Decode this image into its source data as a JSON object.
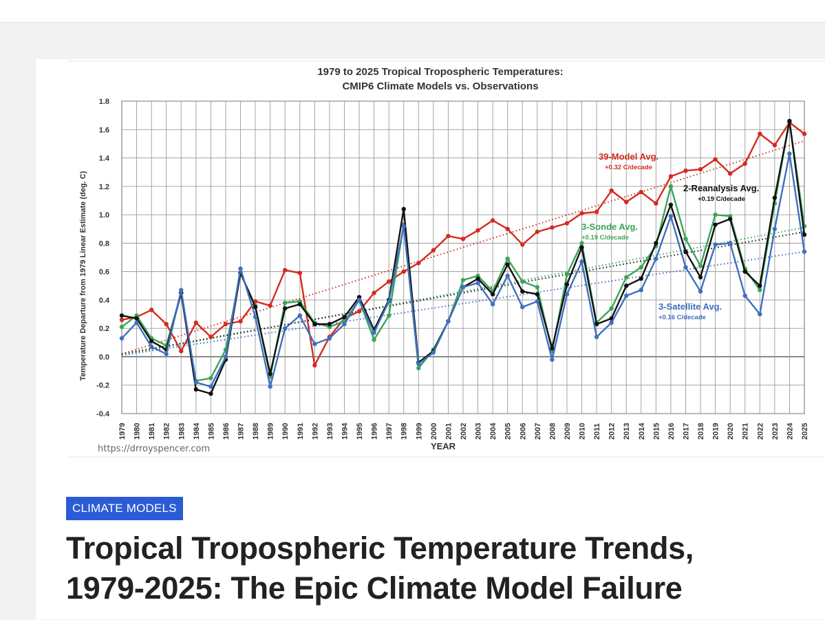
{
  "chart_data": {
    "type": "line",
    "title": [
      "1979 to 2025 Tropical Tropospheric Temperatures:",
      "CMIP6 Climate Models vs. Observations"
    ],
    "xlabel": "YEAR",
    "ylabel": "Temperature Departure from 1979 Linear Estimate (deg. C)",
    "ylim": [
      -0.4,
      1.8
    ],
    "yticks": [
      "1.8",
      "1.6",
      "1.4",
      "1.2",
      "1.0",
      "0.8",
      "0.6",
      "0.4",
      "0.2",
      "0.0",
      "-0.2",
      "-0.4"
    ],
    "x": [
      1979,
      1980,
      1981,
      1982,
      1983,
      1984,
      1985,
      1986,
      1987,
      1988,
      1989,
      1990,
      1991,
      1992,
      1993,
      1994,
      1995,
      1996,
      1997,
      1998,
      1999,
      2000,
      2001,
      2002,
      2003,
      2004,
      2005,
      2006,
      2007,
      2008,
      2009,
      2010,
      2011,
      2012,
      2013,
      2014,
      2015,
      2016,
      2017,
      2018,
      2019,
      2020,
      2021,
      2022,
      2023,
      2024,
      2025
    ],
    "source": "https://drroyspencer.com",
    "series": [
      {
        "name": "39-Model Avg.",
        "trend_label": "+0.32 C/decade",
        "color": "#d42a1f",
        "trend": [
          0.02,
          1.52
        ],
        "values": [
          0.26,
          0.28,
          0.33,
          0.23,
          0.04,
          0.24,
          0.14,
          0.23,
          0.25,
          0.39,
          0.36,
          0.61,
          0.59,
          -0.06,
          0.14,
          0.27,
          0.32,
          0.45,
          0.53,
          0.6,
          0.66,
          0.75,
          0.85,
          0.83,
          0.89,
          0.96,
          0.9,
          0.79,
          0.88,
          0.91,
          0.94,
          1.01,
          1.02,
          1.17,
          1.09,
          1.16,
          1.08,
          1.27,
          1.31,
          1.32,
          1.39,
          1.29,
          1.36,
          1.57,
          1.49,
          1.65,
          1.57
        ]
      },
      {
        "name": "3-Sonde Avg.",
        "trend_label": "+0.19 C/decade",
        "color": "#3aa557",
        "trend": [
          0.01,
          0.91
        ],
        "values": [
          0.21,
          0.29,
          0.13,
          0.08,
          0.45,
          -0.17,
          -0.15,
          0.05,
          0.59,
          0.36,
          -0.14,
          0.38,
          0.39,
          0.24,
          0.21,
          0.25,
          0.4,
          0.12,
          0.29,
          0.93,
          -0.08,
          0.05,
          0.25,
          0.54,
          0.57,
          0.46,
          0.69,
          0.53,
          0.49,
          0.04,
          0.58,
          0.8,
          0.24,
          0.34,
          0.56,
          0.63,
          0.78,
          1.2,
          0.83,
          0.64,
          1.0,
          0.99,
          0.62,
          0.47,
          1.08,
          1.66,
          0.92
        ]
      },
      {
        "name": "2-Reanalysis Avg.",
        "trend_label": "+0.19 C/decade",
        "color": "#111111",
        "trend": [
          0.02,
          0.88
        ],
        "values": [
          0.29,
          0.27,
          0.11,
          0.05,
          0.45,
          -0.23,
          -0.26,
          -0.02,
          0.59,
          0.35,
          -0.12,
          0.34,
          0.37,
          0.23,
          0.23,
          0.28,
          0.42,
          0.19,
          0.4,
          1.04,
          -0.04,
          0.04,
          0.25,
          0.49,
          0.55,
          0.44,
          0.65,
          0.46,
          0.44,
          0.06,
          0.51,
          0.77,
          0.23,
          0.27,
          0.5,
          0.55,
          0.8,
          1.07,
          0.74,
          0.56,
          0.93,
          0.97,
          0.6,
          0.5,
          1.12,
          1.66,
          0.86
        ]
      },
      {
        "name": "3-Satellite Avg.",
        "trend_label": "+0.16 C/decade",
        "color": "#3f6fbf",
        "trend": [
          0.01,
          0.74
        ],
        "values": [
          0.13,
          0.24,
          0.07,
          0.02,
          0.47,
          -0.18,
          -0.21,
          0.0,
          0.62,
          0.28,
          -0.21,
          0.2,
          0.29,
          0.09,
          0.13,
          0.23,
          0.4,
          0.17,
          0.39,
          0.92,
          -0.05,
          0.03,
          0.25,
          0.49,
          0.52,
          0.37,
          0.57,
          0.35,
          0.39,
          -0.02,
          0.44,
          0.67,
          0.14,
          0.24,
          0.43,
          0.47,
          0.69,
          0.99,
          0.63,
          0.46,
          0.79,
          0.8,
          0.43,
          0.3,
          0.9,
          1.43,
          0.74
        ]
      }
    ]
  },
  "article": {
    "category": "CLIMATE MODELS",
    "title_line1": "Tropical Tropospheric Temperature Trends,",
    "title_line2": "1979-2025: The Epic Climate Model Failure"
  }
}
